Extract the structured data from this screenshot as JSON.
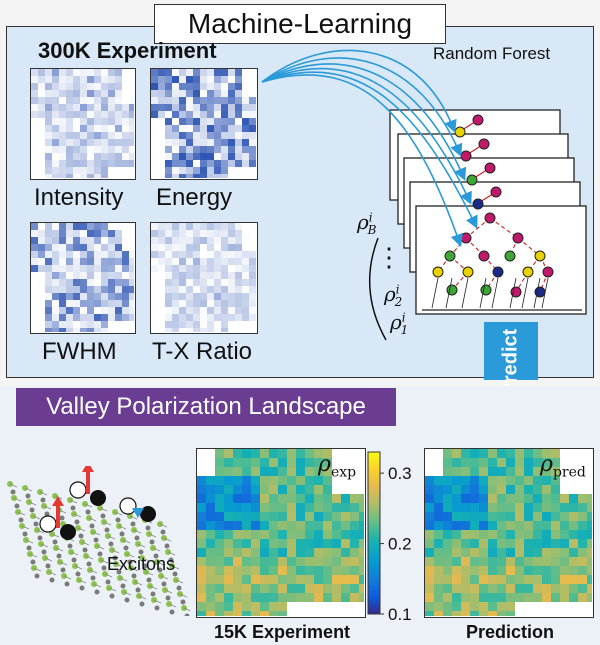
{
  "title": "Machine-Learning",
  "section_300k": "300K Experiment",
  "random_forest": "Random Forest",
  "maps_300k": [
    {
      "label": "Intensity"
    },
    {
      "label": "Energy"
    },
    {
      "label": "FWHM"
    },
    {
      "label": "T-X Ratio"
    }
  ],
  "rho_labels": {
    "rho_b": "ρ",
    "sup_i": "i",
    "sub_b": "B",
    "sub_2": "2",
    "sub_1": "1",
    "dots": "⋮"
  },
  "predict_label": "Predict",
  "banner": "Valley Polarization Landscape",
  "excitons_label": "Excitons",
  "map_15k_caption": "15K Experiment",
  "map_pred_caption": "Prediction",
  "rho_exp": {
    "symbol": "ρ",
    "sub": "exp"
  },
  "rho_pred": {
    "symbol": "ρ",
    "sub": "pred"
  },
  "colorbar": {
    "ticks": [
      "0.3",
      "0.2",
      "0.1"
    ],
    "colormap": "parula",
    "range": [
      0.1,
      0.33
    ]
  },
  "colors": {
    "panel_bg": "#d8e8f6",
    "banner_bg": "#6a3d93",
    "arrow": "#2a9ad8",
    "predict_arrow": "#2a9ad8"
  }
}
